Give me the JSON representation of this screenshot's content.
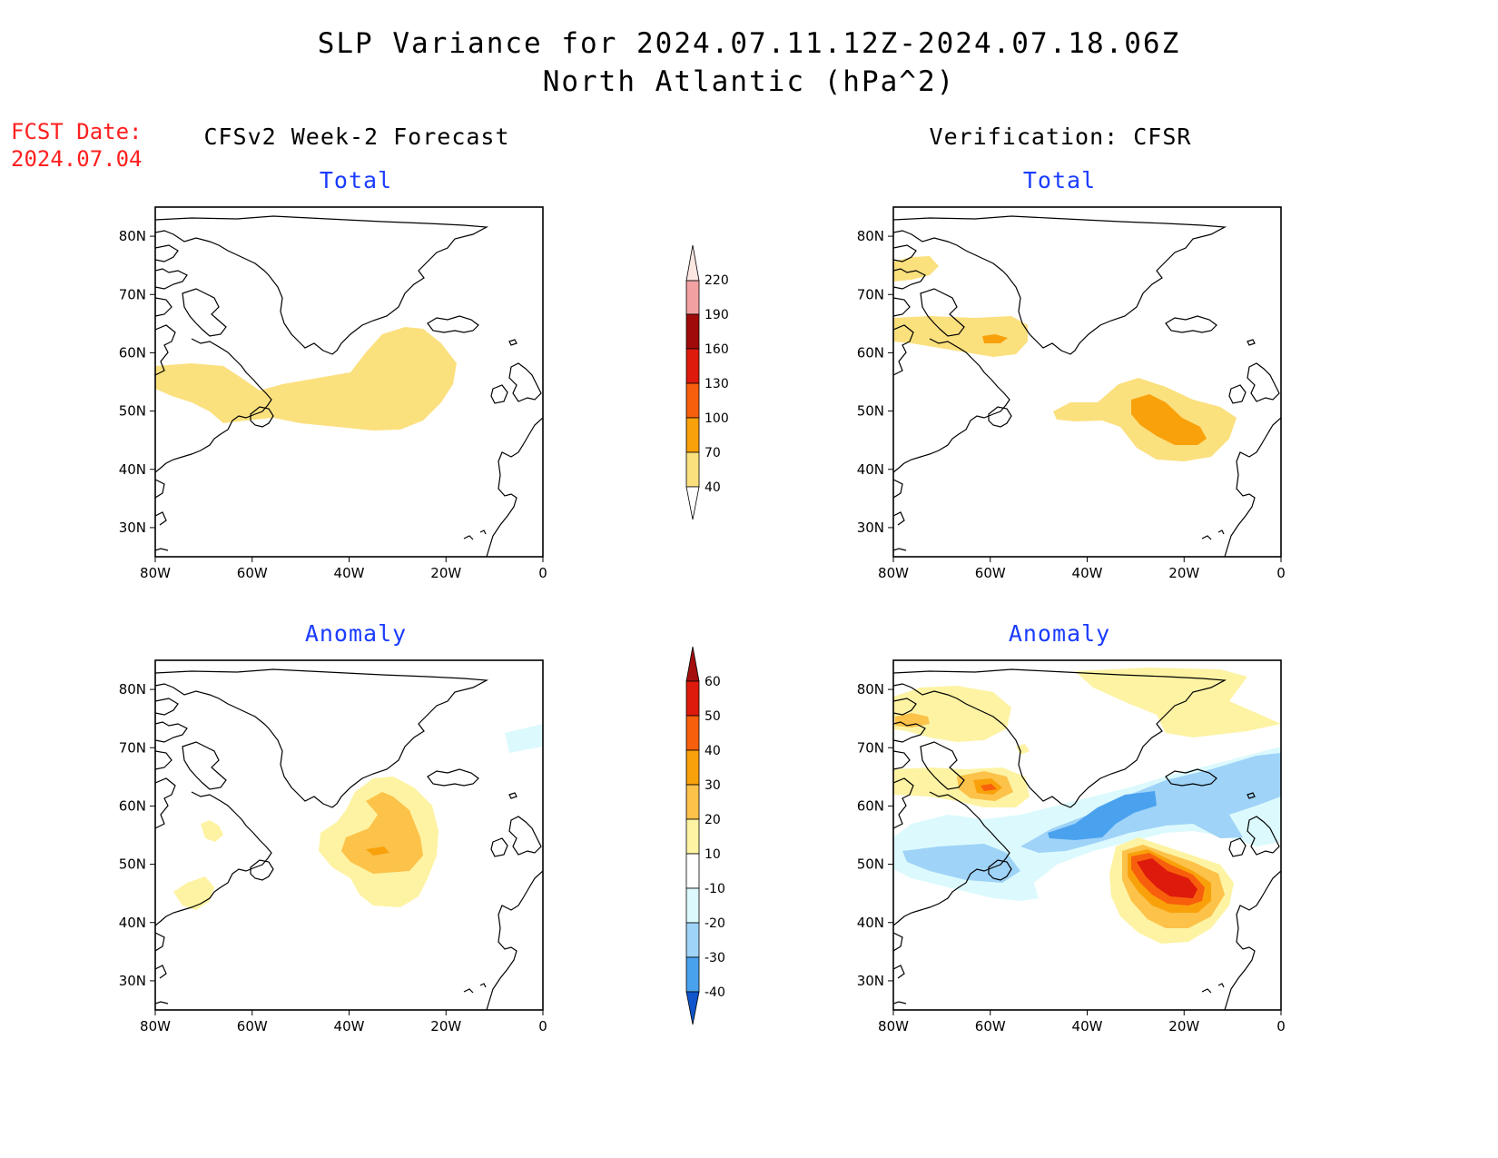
{
  "header": {
    "title_line1": "SLP Variance for 2024.07.11.12Z-2024.07.18.06Z",
    "title_line2": "North Atlantic (hPa^2)",
    "fcst_label": "FCST Date:",
    "fcst_date": "2024.07.04"
  },
  "columns": {
    "left": "CFSv2 Week-2 Forecast",
    "right": "Verification: CFSR"
  },
  "rows": {
    "top": "Total",
    "bottom": "Anomaly"
  },
  "map_axes": {
    "lat_labels": [
      "80N",
      "70N",
      "60N",
      "50N",
      "40N",
      "30N"
    ],
    "lon_labels": [
      "80W",
      "60W",
      "40W",
      "20W",
      "0"
    ],
    "lat_range": [
      25,
      85
    ],
    "lon_range": [
      -80,
      0
    ]
  },
  "colorbars": {
    "total": {
      "levels": [
        "40",
        "70",
        "100",
        "130",
        "160",
        "190",
        "220"
      ],
      "colors": [
        "#fbe07e",
        "#f9a10b",
        "#f85f0c",
        "#dd1a0c",
        "#a10a0a",
        "#f1a1a1",
        "#fde7e2"
      ]
    },
    "anomaly": {
      "levels": [
        "60",
        "50",
        "40",
        "30",
        "20",
        "10",
        "-10",
        "-20",
        "-30",
        "-40"
      ],
      "colors": [
        "#a50e0e",
        "#dd1a0c",
        "#f85f0c",
        "#f9a10b",
        "#fcc24a",
        "#fdf3a3",
        "#ffffff",
        "#dcfafd",
        "#9fd3f8",
        "#4aa2ef",
        "#2070e0",
        "#1055cc"
      ]
    }
  },
  "colors": {
    "title_red": "#ff2020",
    "subtitle_blue": "#1a3cff"
  }
}
